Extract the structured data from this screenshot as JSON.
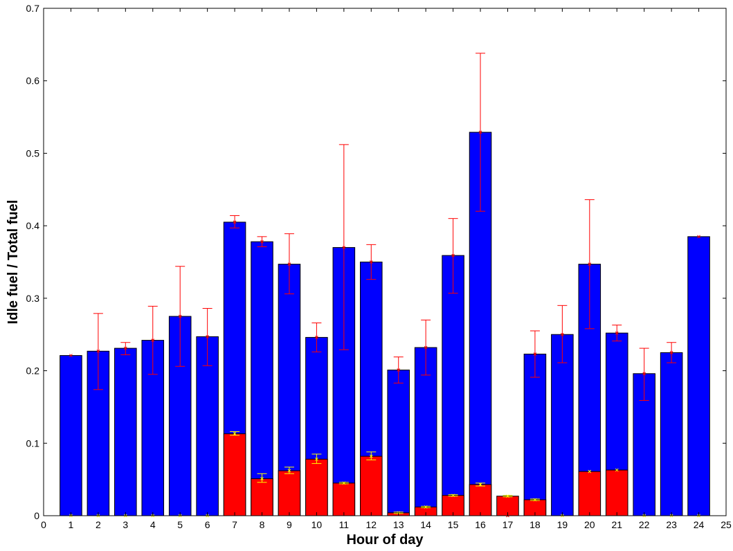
{
  "chart_data": {
    "type": "bar",
    "title": "",
    "xlabel": "Hour of day",
    "ylabel": "Idle fuel / Total fuel",
    "xlim": [
      0,
      25
    ],
    "ylim": [
      0,
      0.7
    ],
    "xticks": [
      0,
      1,
      2,
      3,
      4,
      5,
      6,
      7,
      8,
      9,
      10,
      11,
      12,
      13,
      14,
      15,
      16,
      17,
      18,
      19,
      20,
      21,
      22,
      23,
      24,
      25
    ],
    "yticks": [
      0,
      0.1,
      0.2,
      0.3,
      0.4,
      0.5,
      0.6,
      0.7
    ],
    "grid": false,
    "categories": [
      1,
      2,
      3,
      4,
      5,
      6,
      7,
      8,
      9,
      10,
      11,
      12,
      13,
      14,
      15,
      16,
      17,
      18,
      19,
      20,
      21,
      22,
      23,
      24
    ],
    "series": [
      {
        "color": "#0000ff",
        "values": [
          0.221,
          0.227,
          0.231,
          0.242,
          0.275,
          0.247,
          0.405,
          0.378,
          0.347,
          0.246,
          0.37,
          0.35,
          0.201,
          0.232,
          0.359,
          0.529,
          0,
          0.223,
          0.25,
          0.347,
          0.252,
          0.196,
          0.225,
          0.385
        ],
        "error_low": [
          null,
          0.174,
          0.222,
          0.195,
          0.206,
          0.207,
          0.397,
          0.371,
          0.306,
          0.226,
          0.229,
          0.326,
          0.183,
          0.194,
          0.307,
          0.42,
          null,
          0.191,
          0.211,
          0.258,
          0.241,
          0.159,
          0.211,
          null
        ],
        "error_high": [
          null,
          0.279,
          0.239,
          0.289,
          0.344,
          0.286,
          0.414,
          0.385,
          0.389,
          0.266,
          0.512,
          0.374,
          0.219,
          0.27,
          0.41,
          0.638,
          null,
          0.255,
          0.29,
          0.436,
          0.263,
          0.231,
          0.239,
          null
        ],
        "error_color": "#ff0000"
      },
      {
        "color": "#ff0000",
        "values": [
          0,
          0,
          0,
          0,
          0,
          0,
          0.113,
          0.051,
          0.062,
          0.078,
          0.045,
          0.082,
          0.004,
          0.012,
          0.028,
          0.043,
          0.027,
          0.022,
          0,
          0.061,
          0.063,
          0,
          0,
          0
        ],
        "error_low": [
          null,
          null,
          null,
          null,
          null,
          null,
          0.111,
          0.046,
          0.058,
          0.072,
          0.044,
          0.077,
          0.003,
          0.011,
          0.027,
          0.041,
          0.026,
          0.021,
          null,
          null,
          null,
          null,
          null,
          null
        ],
        "error_high": [
          null,
          null,
          null,
          null,
          null,
          null,
          0.116,
          0.058,
          0.067,
          0.085,
          0.046,
          0.088,
          0.005,
          0.013,
          0.029,
          0.045,
          0.028,
          0.023,
          null,
          null,
          null,
          null,
          null,
          null
        ],
        "error_color": "#ffff00"
      }
    ]
  }
}
